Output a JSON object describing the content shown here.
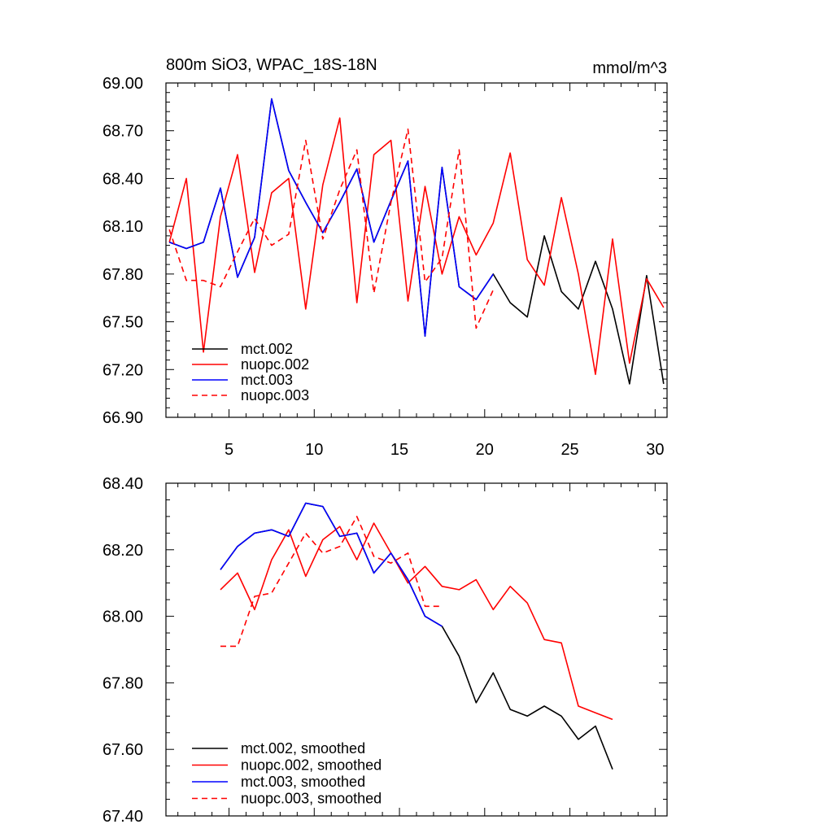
{
  "chart_data": [
    {
      "type": "line",
      "title": "800m SiO3, WPAC_18S-18N",
      "units": "mmol/m^3",
      "xlabel": "",
      "ylabel": "",
      "xlim": [
        1.3,
        30.7
      ],
      "ylim": [
        66.9,
        69.0
      ],
      "xticks": [
        5,
        10,
        15,
        20,
        25,
        30
      ],
      "xtick_labels": [
        "5",
        "10",
        "15",
        "20",
        "25",
        "30"
      ],
      "yticks": [
        66.9,
        67.2,
        67.5,
        67.8,
        68.1,
        68.4,
        68.7,
        69.0
      ],
      "ytick_labels": [
        "66.90",
        "67.20",
        "67.50",
        "67.80",
        "68.10",
        "68.40",
        "68.70",
        "69.00"
      ],
      "legend_position": "bottom-left",
      "series": [
        {
          "name": "mct.002",
          "color": "#000000",
          "dash": "solid",
          "x": [
            1.5,
            2.5,
            3.5,
            4.5,
            5.5,
            6.5,
            7.5,
            8.5,
            9.5,
            10.5,
            11.5,
            12.5,
            13.5,
            14.5,
            15.5,
            16.5,
            17.5,
            18.5,
            19.5,
            20.5,
            21.5,
            22.5,
            23.5,
            24.5,
            25.5,
            26.5,
            27.5,
            28.5,
            29.5,
            30.5
          ],
          "y": [
            68.0,
            67.96,
            68.0,
            68.34,
            67.78,
            68.03,
            68.9,
            68.45,
            68.25,
            68.06,
            68.25,
            68.46,
            68.0,
            68.26,
            68.51,
            67.41,
            68.47,
            67.72,
            67.64,
            67.8,
            67.62,
            67.53,
            68.04,
            67.69,
            67.58,
            67.88,
            67.58,
            67.11,
            67.79,
            67.11
          ]
        },
        {
          "name": "nuopc.002",
          "color": "#ff0000",
          "dash": "solid",
          "x": [
            1.5,
            2.5,
            3.5,
            4.5,
            5.5,
            6.5,
            7.5,
            8.5,
            9.5,
            10.5,
            11.5,
            12.5,
            13.5,
            14.5,
            15.5,
            16.5,
            17.5,
            18.5,
            19.5,
            20.5,
            21.5,
            22.5,
            23.5,
            24.5,
            25.5,
            26.5,
            27.5,
            28.5,
            29.5,
            30.5
          ],
          "y": [
            68.0,
            68.4,
            67.31,
            68.16,
            68.55,
            67.81,
            68.31,
            68.4,
            67.58,
            68.36,
            68.78,
            67.62,
            68.55,
            68.64,
            67.63,
            68.35,
            67.8,
            68.16,
            67.92,
            68.12,
            68.56,
            67.89,
            67.73,
            68.28,
            67.8,
            67.17,
            68.02,
            67.24,
            67.77,
            67.59
          ]
        },
        {
          "name": "mct.003",
          "color": "#0000ff",
          "dash": "solid",
          "x": [
            1.5,
            2.5,
            3.5,
            4.5,
            5.5,
            6.5,
            7.5,
            8.5,
            9.5,
            10.5,
            11.5,
            12.5,
            13.5,
            14.5,
            15.5,
            16.5,
            17.5,
            18.5,
            19.5,
            20.5
          ],
          "y": [
            68.0,
            67.96,
            68.0,
            68.34,
            67.78,
            68.03,
            68.9,
            68.45,
            68.25,
            68.06,
            68.25,
            68.46,
            68.0,
            68.26,
            68.51,
            67.41,
            68.47,
            67.72,
            67.64,
            67.8
          ]
        },
        {
          "name": "nuopc.003",
          "color": "#ff0000",
          "dash": "dashed",
          "x": [
            1.5,
            2.5,
            3.5,
            4.5,
            5.5,
            6.5,
            7.5,
            8.5,
            9.5,
            10.5,
            11.5,
            12.5,
            13.5,
            14.5,
            15.5,
            16.5,
            17.5,
            18.5,
            19.5,
            20.5
          ],
          "y": [
            68.08,
            67.76,
            67.76,
            67.72,
            67.94,
            68.15,
            67.98,
            68.05,
            68.64,
            68.02,
            68.33,
            68.58,
            67.68,
            68.25,
            68.71,
            67.75,
            67.9,
            68.58,
            67.46,
            67.7
          ]
        }
      ]
    },
    {
      "type": "line",
      "title": "",
      "xlabel": "",
      "ylabel": "",
      "xlim": [
        1.3,
        30.7
      ],
      "ylim": [
        67.4,
        68.4
      ],
      "xticks": [
        5,
        10,
        15,
        20,
        25,
        30
      ],
      "xtick_labels": [],
      "yticks": [
        67.4,
        67.6,
        67.8,
        68.0,
        68.2,
        68.4
      ],
      "ytick_labels": [
        "67.40",
        "67.60",
        "67.80",
        "68.00",
        "68.20",
        "68.40"
      ],
      "legend_position": "bottom-left",
      "series": [
        {
          "name": "mct.002, smoothed",
          "color": "#000000",
          "dash": "solid",
          "x": [
            4.5,
            5.5,
            6.5,
            7.5,
            8.5,
            9.5,
            10.5,
            11.5,
            12.5,
            13.5,
            14.5,
            15.5,
            16.5,
            17.5,
            18.5,
            19.5,
            20.5,
            21.5,
            22.5,
            23.5,
            24.5,
            25.5,
            26.5,
            27.5
          ],
          "y": [
            68.14,
            68.21,
            68.25,
            68.26,
            68.24,
            68.34,
            68.33,
            68.24,
            68.25,
            68.13,
            68.19,
            68.11,
            68.0,
            67.97,
            67.88,
            67.74,
            67.83,
            67.72,
            67.7,
            67.73,
            67.7,
            67.63,
            67.67,
            67.54
          ]
        },
        {
          "name": "nuopc.002, smoothed",
          "color": "#ff0000",
          "dash": "solid",
          "x": [
            4.5,
            5.5,
            6.5,
            7.5,
            8.5,
            9.5,
            10.5,
            11.5,
            12.5,
            13.5,
            14.5,
            15.5,
            16.5,
            17.5,
            18.5,
            19.5,
            20.5,
            21.5,
            22.5,
            23.5,
            24.5,
            25.5,
            26.5,
            27.5
          ],
          "y": [
            68.08,
            68.13,
            68.02,
            68.17,
            68.26,
            68.12,
            68.23,
            68.27,
            68.17,
            68.28,
            68.19,
            68.1,
            68.15,
            68.09,
            68.08,
            68.11,
            68.02,
            68.09,
            68.04,
            67.93,
            67.92,
            67.73,
            67.71,
            67.69
          ]
        },
        {
          "name": "mct.003, smoothed",
          "color": "#0000ff",
          "dash": "solid",
          "x": [
            4.5,
            5.5,
            6.5,
            7.5,
            8.5,
            9.5,
            10.5,
            11.5,
            12.5,
            13.5,
            14.5,
            15.5,
            16.5,
            17.5
          ],
          "y": [
            68.14,
            68.21,
            68.25,
            68.26,
            68.24,
            68.34,
            68.33,
            68.24,
            68.25,
            68.13,
            68.19,
            68.11,
            68.0,
            67.97
          ]
        },
        {
          "name": "nuopc.003, smoothed",
          "color": "#ff0000",
          "dash": "dashed",
          "x": [
            4.5,
            5.5,
            6.5,
            7.5,
            8.5,
            9.5,
            10.5,
            11.5,
            12.5,
            13.5,
            14.5,
            15.5,
            16.5,
            17.5
          ],
          "y": [
            67.91,
            67.91,
            68.06,
            68.07,
            68.16,
            68.25,
            68.19,
            68.21,
            68.3,
            68.18,
            68.16,
            68.19,
            68.03,
            68.03
          ]
        }
      ]
    }
  ]
}
